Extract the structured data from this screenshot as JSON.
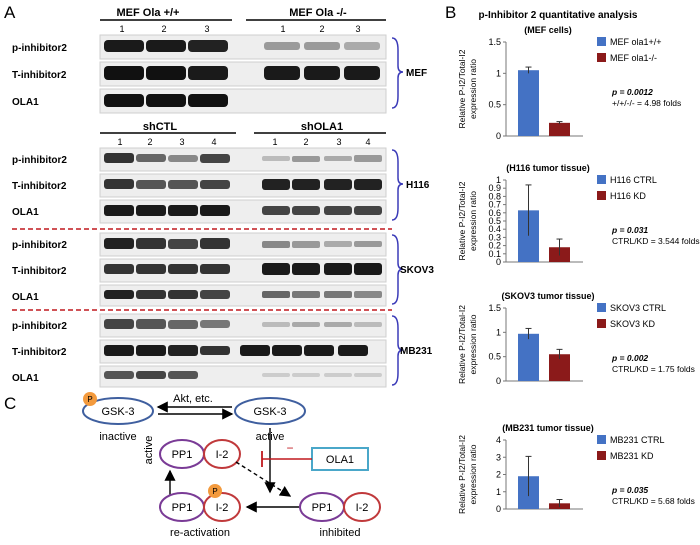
{
  "panels": {
    "a": "A",
    "b": "B",
    "c": "C"
  },
  "blots": {
    "groups": [
      {
        "headers": [
          "MEF Ola +/+",
          "MEF Ola -/-"
        ],
        "lanes_left": [
          "1",
          "2",
          "3"
        ],
        "lanes_right": [
          "1",
          "2",
          "3"
        ],
        "rows": [
          "p-inhibitor2",
          "T-inhibitor2",
          "OLA1"
        ],
        "tag": "MEF"
      },
      {
        "headers": [
          "shCTL",
          "shOLA1"
        ],
        "lanes_left": [
          "1",
          "2",
          "3",
          "4"
        ],
        "lanes_right": [
          "1",
          "2",
          "3",
          "4"
        ],
        "rows": [
          "p-inhibitor2",
          "T-inhibitor2",
          "OLA1"
        ],
        "tag": "H116"
      },
      {
        "rows": [
          "p-inhibitor2",
          "T-inhibitor2",
          "OLA1"
        ],
        "tag": "SKOV3"
      },
      {
        "rows": [
          "p-inhibitor2",
          "T-inhibitor2",
          "OLA1"
        ],
        "tag": "MB231"
      }
    ]
  },
  "chart_section_title": "p-Inhibitor 2 quantitative analysis",
  "chart_data": [
    {
      "type": "bar",
      "title": "(MEF cells)",
      "ylabel": "Relative P-I2/Total-I2 expression ratio",
      "yticks": [
        "0",
        "0.5",
        "1",
        "1.5"
      ],
      "ylim": [
        0,
        1.5
      ],
      "series": [
        {
          "name": "MEF ola1+/+",
          "values": [
            1.05
          ],
          "error": [
            0.05
          ],
          "color": "#4472c4"
        },
        {
          "name": "MEF ola1-/-",
          "values": [
            0.21
          ],
          "error": [
            0.02
          ],
          "color": "#8b1a1a"
        }
      ],
      "annotation": [
        "p = 0.0012",
        "+/+/-/- = 4.98 folds"
      ]
    },
    {
      "type": "bar",
      "title": "(H116 tumor tissue)",
      "ylabel": "Relative P-I2/Total-I2 expression ratio",
      "yticks": [
        "0",
        "0.1",
        "0.2",
        "0.3",
        "0.4",
        "0.5",
        "0.6",
        "0.7",
        "0.8",
        "0.9",
        "1"
      ],
      "ylim": [
        0,
        1
      ],
      "series": [
        {
          "name": "H116 CTRL",
          "values": [
            0.63
          ],
          "error": [
            0.31
          ],
          "color": "#4472c4"
        },
        {
          "name": "H116 KD",
          "values": [
            0.18
          ],
          "error": [
            0.1
          ],
          "color": "#8b1a1a"
        }
      ],
      "annotation": [
        "p = 0.031",
        "CTRL/KD = 3.544 folds"
      ]
    },
    {
      "type": "bar",
      "title": "(SKOV3 tumor tissue)",
      "ylabel": "Relative P-I2/Total-I2 expression ratio",
      "yticks": [
        "0",
        "0.5",
        "1",
        "1.5"
      ],
      "ylim": [
        0,
        1.5
      ],
      "series": [
        {
          "name": "SKOV3 CTRL",
          "values": [
            0.97
          ],
          "error": [
            0.11
          ],
          "color": "#4472c4"
        },
        {
          "name": "SKOV3 KD",
          "values": [
            0.55
          ],
          "error": [
            0.1
          ],
          "color": "#8b1a1a"
        }
      ],
      "annotation": [
        "p = 0.002",
        "CTRL/KD = 1.75 folds"
      ]
    },
    {
      "type": "bar",
      "title": "(MB231 tumor tissue)",
      "ylabel": "Relative P-I2/Total-I2 expression ratio",
      "yticks": [
        "0",
        "1",
        "2",
        "3",
        "4"
      ],
      "ylim": [
        0,
        4
      ],
      "series": [
        {
          "name": "MB231 CTRL",
          "values": [
            1.9
          ],
          "error": [
            1.15
          ],
          "color": "#4472c4"
        },
        {
          "name": "MB231 KD",
          "values": [
            0.33
          ],
          "error": [
            0.22
          ],
          "color": "#8b1a1a"
        }
      ],
      "annotation": [
        "p = 0.035",
        "CTRL/KD = 5.68 folds"
      ]
    }
  ],
  "diagram": {
    "gsk3": "GSK-3",
    "p": "P",
    "inactive": "inactive",
    "active": "active",
    "akt": "Akt, etc.",
    "pp1": "PP1",
    "i2": "I-2",
    "ola1": "OLA1",
    "reactivation": "re-activation",
    "inhibited": "inhibited",
    "minus": "−"
  }
}
